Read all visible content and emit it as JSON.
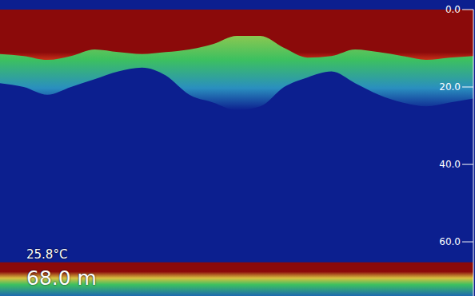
{
  "chart_data": {
    "type": "area",
    "x": [
      0,
      5,
      10,
      15,
      20,
      25,
      30,
      35,
      40,
      45,
      50,
      55,
      60,
      65,
      70,
      75,
      80,
      85,
      90,
      95,
      100
    ],
    "xlim": [
      0,
      100
    ],
    "ylim": [
      0,
      74
    ],
    "yticks": [
      {
        "value": 0,
        "label": "0.0"
      },
      {
        "value": 20,
        "label": "20.0"
      },
      {
        "value": 40,
        "label": "40.0"
      },
      {
        "value": 60,
        "label": "60.0"
      }
    ],
    "tick_labels": "y",
    "series": [
      {
        "color": "#3cc060",
        "values": [
          19,
          20,
          22,
          20,
          18,
          16,
          15,
          17,
          22,
          24,
          26,
          25,
          20,
          17.5,
          16,
          19,
          22,
          24,
          25,
          24,
          23
        ]
      },
      {
        "color": "#8b0a0a",
        "values": [
          11.5,
          12,
          13,
          12,
          10.3,
          11,
          11.5,
          11,
          10.3,
          8.9,
          6.8,
          6.8,
          9.9,
          12.4,
          12,
          10.3,
          11,
          12,
          13,
          12.4,
          12
        ]
      },
      {
        "color": "#8b0a0a",
        "values": [
          65.6,
          65.6,
          65.6,
          65.6,
          65.6,
          65.6,
          65.6,
          65.6,
          65.6,
          65.6,
          65.6,
          65.6,
          65.6,
          65.6,
          65.6,
          65.6,
          65.6,
          65.6,
          65.6,
          65.6,
          65.6
        ]
      }
    ],
    "annotations": [
      "25.8°C",
      "68.0 m"
    ]
  }
}
